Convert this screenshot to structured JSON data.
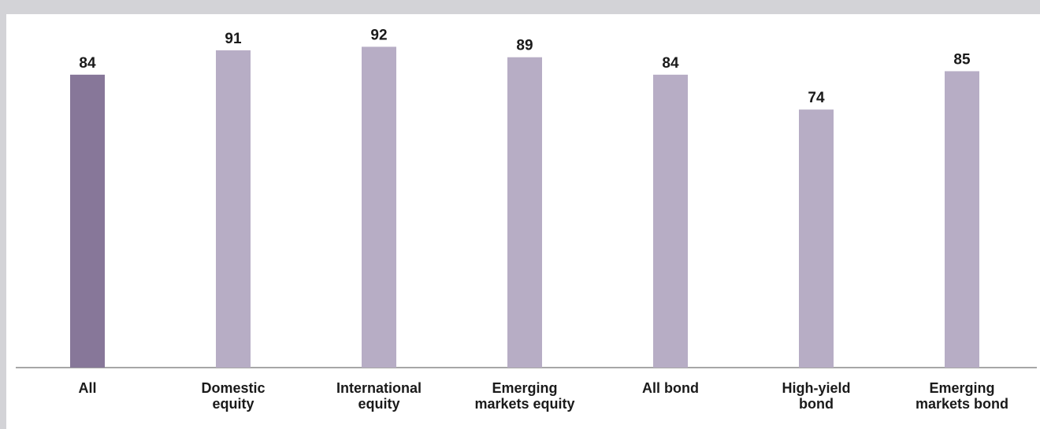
{
  "chart_data": {
    "type": "bar",
    "categories": [
      [
        "All"
      ],
      [
        "Domestic",
        "equity"
      ],
      [
        "International",
        "equity"
      ],
      [
        "Emerging",
        "markets equity"
      ],
      [
        "All bond"
      ],
      [
        "High-yield",
        "bond"
      ],
      [
        "Emerging",
        "markets bond"
      ]
    ],
    "values": [
      84,
      91,
      92,
      89,
      84,
      74,
      85
    ],
    "highlight_index": 0,
    "colors": {
      "highlight": "#877799",
      "default": "#b7adc5",
      "axis": "#8a8a8a",
      "text": "#1a1a1a"
    },
    "ylim": [
      0,
      100
    ],
    "grid": false,
    "title": "",
    "xlabel": "",
    "ylabel": ""
  }
}
